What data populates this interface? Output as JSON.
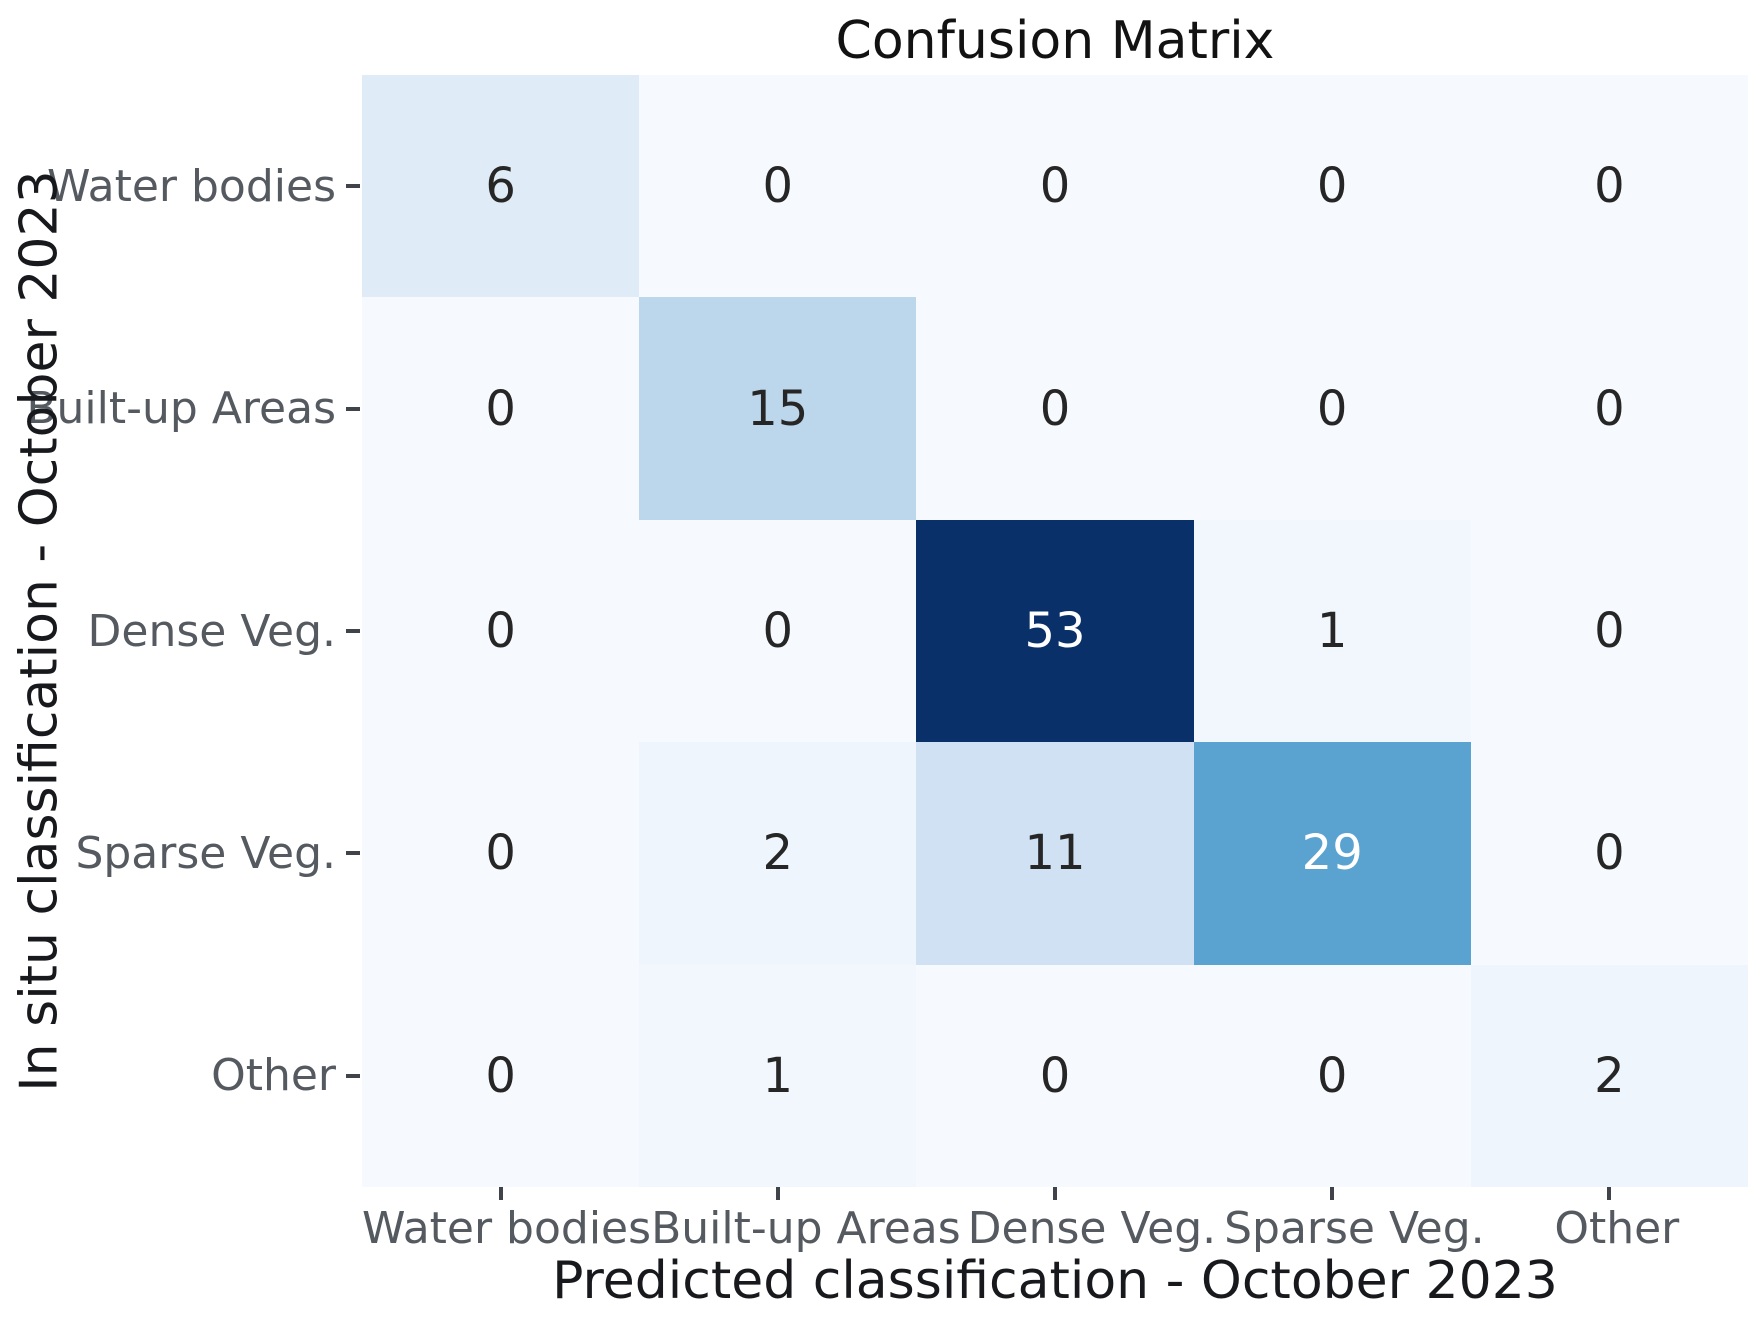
{
  "chart_data": {
    "type": "heatmap",
    "title": "Confusion Matrix",
    "xlabel": "Predicted classification - October 2023",
    "ylabel": "In situ classification - October 2023",
    "x_categories": [
      "Water bodies",
      "Built-up Areas",
      "Dense Veg.",
      "Sparse Veg.",
      "Other"
    ],
    "y_categories": [
      "Water bodies",
      "Built-up Areas",
      "Dense Veg.",
      "Sparse Veg.",
      "Other"
    ],
    "matrix": [
      [
        6,
        0,
        0,
        0,
        0
      ],
      [
        0,
        15,
        0,
        0,
        0
      ],
      [
        0,
        0,
        53,
        1,
        0
      ],
      [
        0,
        2,
        11,
        29,
        0
      ],
      [
        0,
        1,
        0,
        0,
        2
      ]
    ],
    "vmin": 0,
    "vmax": 53,
    "colormap": "Blues",
    "legend": "none",
    "grid": false,
    "colors": {
      "background": "#ffffff",
      "title": "#121212",
      "axis_label": "#17191c",
      "tick_label": "#555960",
      "tick_mark": "#40444a",
      "annotation_dark": "#262626",
      "annotation_light": "#ffffff"
    },
    "cell_colors": [
      [
        "#dfecf7",
        "#f6f9fd",
        "#f6f9fd",
        "#f6f9fd",
        "#f6f9fd"
      ],
      [
        "#f6f9fd",
        "#bcd7eb",
        "#f6f9fd",
        "#f6f9fd",
        "#f6f9fd"
      ],
      [
        "#f6f9fd",
        "#f6f9fd",
        "#0a3069",
        "#f2f7fd",
        "#f6f9fd"
      ],
      [
        "#f6f9fd",
        "#eef5fc",
        "#cfe1f2",
        "#5aa2d0",
        "#f6f9fd"
      ],
      [
        "#f6f9fd",
        "#f2f7fd",
        "#f6f9fd",
        "#f6f9fd",
        "#eef5fc"
      ]
    ],
    "text_colors": [
      [
        "#262626",
        "#262626",
        "#262626",
        "#262626",
        "#262626"
      ],
      [
        "#262626",
        "#262626",
        "#262626",
        "#262626",
        "#262626"
      ],
      [
        "#262626",
        "#262626",
        "#ffffff",
        "#262626",
        "#262626"
      ],
      [
        "#262626",
        "#262626",
        "#262626",
        "#ffffff",
        "#262626"
      ],
      [
        "#262626",
        "#262626",
        "#262626",
        "#262626",
        "#262626"
      ]
    ]
  }
}
